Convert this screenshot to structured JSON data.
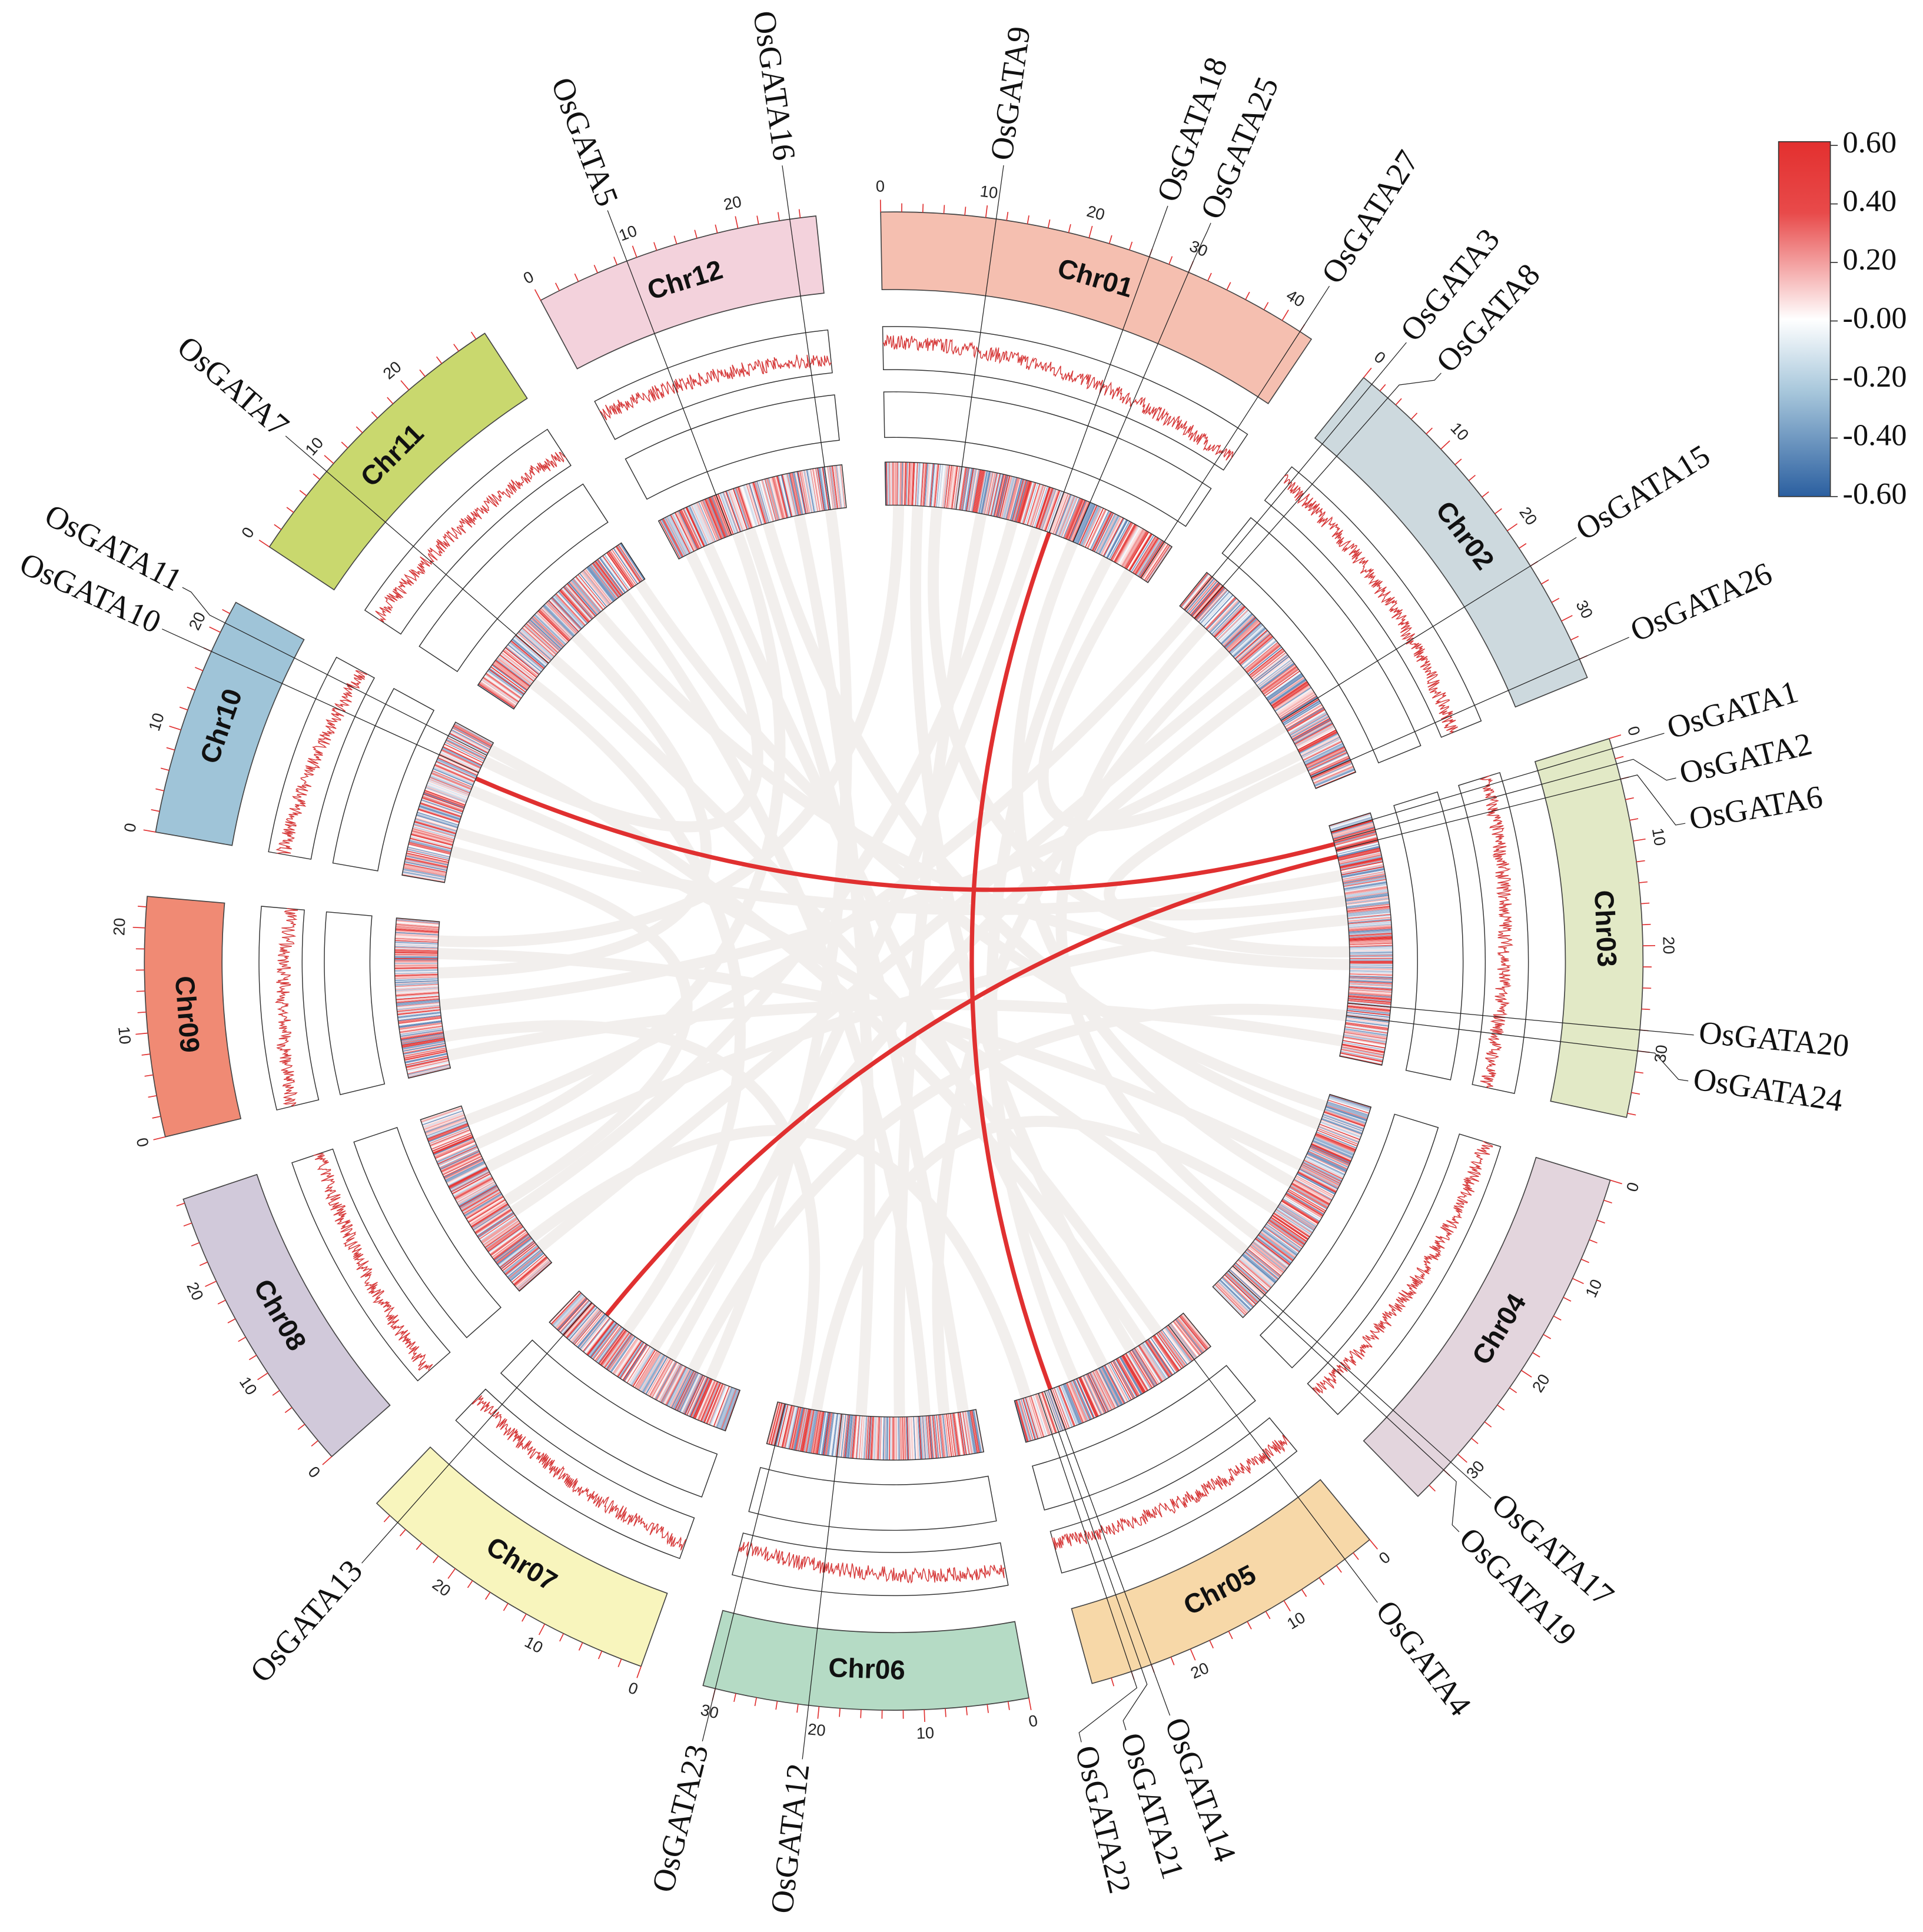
{
  "chromosomes": [
    {
      "name": "Chr01",
      "length": 43.3,
      "color": "#f5bfb0"
    },
    {
      "name": "Chr02",
      "length": 35.9,
      "color": "#cdd9de"
    },
    {
      "name": "Chr03",
      "length": 36.4,
      "color": "#e2e9c6"
    },
    {
      "name": "Chr04",
      "length": 35.5,
      "color": "#e3d5dd"
    },
    {
      "name": "Chr05",
      "length": 29.9,
      "color": "#f7d8a8"
    },
    {
      "name": "Chr06",
      "length": 31.2,
      "color": "#b5dbc5"
    },
    {
      "name": "Chr07",
      "length": 29.7,
      "color": "#f8f5bd"
    },
    {
      "name": "Chr08",
      "length": 28.4,
      "color": "#d1c9da"
    },
    {
      "name": "Chr09",
      "length": 23.0,
      "color": "#f08a74"
    },
    {
      "name": "Chr10",
      "length": 23.2,
      "color": "#9fc4d8"
    },
    {
      "name": "Chr11",
      "length": 29.0,
      "color": "#c9d86e"
    },
    {
      "name": "Chr12",
      "length": 27.5,
      "color": "#f3d2dc"
    }
  ],
  "genes": [
    {
      "name": "OsGATA9",
      "chr": "Chr01",
      "pos": 11
    },
    {
      "name": "OsGATA18",
      "chr": "Chr01",
      "pos": 26
    },
    {
      "name": "OsGATA25",
      "chr": "Chr01",
      "pos": 30
    },
    {
      "name": "OsGATA27",
      "chr": "Chr01",
      "pos": 42
    },
    {
      "name": "OsGATA3",
      "chr": "Chr02",
      "pos": 1
    },
    {
      "name": "OsGATA8",
      "chr": "Chr02",
      "pos": 3
    },
    {
      "name": "OsGATA15",
      "chr": "Chr02",
      "pos": 24
    },
    {
      "name": "OsGATA26",
      "chr": "Chr02",
      "pos": 34
    },
    {
      "name": "OsGATA1",
      "chr": "Chr03",
      "pos": 1
    },
    {
      "name": "OsGATA2",
      "chr": "Chr03",
      "pos": 2.5
    },
    {
      "name": "OsGATA6",
      "chr": "Chr03",
      "pos": 4
    },
    {
      "name": "OsGATA20",
      "chr": "Chr03",
      "pos": 28
    },
    {
      "name": "OsGATA24",
      "chr": "Chr03",
      "pos": 30
    },
    {
      "name": "OsGATA17",
      "chr": "Chr04",
      "pos": 31
    },
    {
      "name": "OsGATA19",
      "chr": "Chr04",
      "pos": 32
    },
    {
      "name": "OsGATA4",
      "chr": "Chr05",
      "pos": 3
    },
    {
      "name": "OsGATA14",
      "chr": "Chr05",
      "pos": 24
    },
    {
      "name": "OsGATA21",
      "chr": "Chr05",
      "pos": 25
    },
    {
      "name": "OsGATA22",
      "chr": "Chr05",
      "pos": 26
    },
    {
      "name": "OsGATA12",
      "chr": "Chr06",
      "pos": 21
    },
    {
      "name": "OsGATA23",
      "chr": "Chr06",
      "pos": 30
    },
    {
      "name": "OsGATA13",
      "chr": "Chr07",
      "pos": 27
    },
    {
      "name": "OsGATA10",
      "chr": "Chr10",
      "pos": 18
    },
    {
      "name": "OsGATA11",
      "chr": "Chr10",
      "pos": 21
    },
    {
      "name": "OsGATA7",
      "chr": "Chr11",
      "pos": 9
    },
    {
      "name": "OsGATA5",
      "chr": "Chr12",
      "pos": 9
    },
    {
      "name": "OsGATA16",
      "chr": "Chr12",
      "pos": 25
    }
  ],
  "highlight_links": [
    {
      "a": [
        "Chr01",
        26
      ],
      "b": [
        "Chr05",
        24
      ],
      "color": "#e03030"
    },
    {
      "a": [
        "Chr10",
        17
      ],
      "b": [
        "Chr03",
        3
      ],
      "color": "#e03030"
    },
    {
      "a": [
        "Chr03",
        5
      ],
      "b": [
        "Chr07",
        24
      ],
      "color": "#e03030"
    }
  ],
  "background_links": [
    [
      "Chr01",
      5,
      "Chr05",
      10
    ],
    [
      "Chr01",
      8,
      "Chr03",
      20
    ],
    [
      "Chr01",
      15,
      "Chr06",
      12
    ],
    [
      "Chr01",
      20,
      "Chr08",
      10
    ],
    [
      "Chr01",
      30,
      "Chr04",
      15
    ],
    [
      "Chr01",
      36,
      "Chr05",
      20
    ],
    [
      "Chr01",
      40,
      "Chr02",
      30
    ],
    [
      "Chr02",
      5,
      "Chr04",
      25
    ],
    [
      "Chr02",
      10,
      "Chr06",
      5
    ],
    [
      "Chr02",
      18,
      "Chr07",
      15
    ],
    [
      "Chr02",
      25,
      "Chr09",
      10
    ],
    [
      "Chr02",
      32,
      "Chr03",
      12
    ],
    [
      "Chr03",
      8,
      "Chr10",
      8
    ],
    [
      "Chr03",
      15,
      "Chr08",
      18
    ],
    [
      "Chr03",
      22,
      "Chr11",
      20
    ],
    [
      "Chr03",
      30,
      "Chr07",
      8
    ],
    [
      "Chr04",
      5,
      "Chr12",
      15
    ],
    [
      "Chr04",
      12,
      "Chr09",
      18
    ],
    [
      "Chr04",
      20,
      "Chr06",
      25
    ],
    [
      "Chr04",
      28,
      "Chr10",
      15
    ],
    [
      "Chr05",
      5,
      "Chr11",
      10
    ],
    [
      "Chr05",
      15,
      "Chr12",
      5
    ],
    [
      "Chr05",
      28,
      "Chr08",
      5
    ],
    [
      "Chr06",
      8,
      "Chr11",
      25
    ],
    [
      "Chr06",
      18,
      "Chr12",
      20
    ],
    [
      "Chr06",
      28,
      "Chr09",
      5
    ],
    [
      "Chr07",
      5,
      "Chr12",
      25
    ],
    [
      "Chr07",
      20,
      "Chr11",
      5
    ],
    [
      "Chr08",
      22,
      "Chr12",
      10
    ],
    [
      "Chr08",
      12,
      "Chr10",
      5
    ],
    [
      "Chr09",
      15,
      "Chr11",
      15
    ],
    [
      "Chr10",
      20,
      "Chr12",
      2
    ],
    [
      "Chr01",
      2,
      "Chr09",
      20
    ],
    [
      "Chr02",
      2,
      "Chr08",
      26
    ],
    [
      "Chr11",
      28,
      "Chr04",
      2
    ],
    [
      "Chr12",
      12,
      "Chr06",
      2
    ],
    [
      "Chr03",
      34,
      "Chr09",
      2
    ],
    [
      "Chr05",
      8,
      "Chr10",
      22
    ],
    [
      "Chr07",
      12,
      "Chr01",
      24
    ],
    [
      "Chr08",
      3,
      "Chr02",
      14
    ]
  ],
  "link_background_color": "#f2efed",
  "legend": {
    "labels": [
      "0.60",
      "0.40",
      "0.20",
      "-0.00",
      "-0.20",
      "-0.40",
      "-0.60"
    ],
    "colors": {
      "high": "#e3302f",
      "mid": "#ffffff",
      "low": "#2b5fa0"
    }
  }
}
